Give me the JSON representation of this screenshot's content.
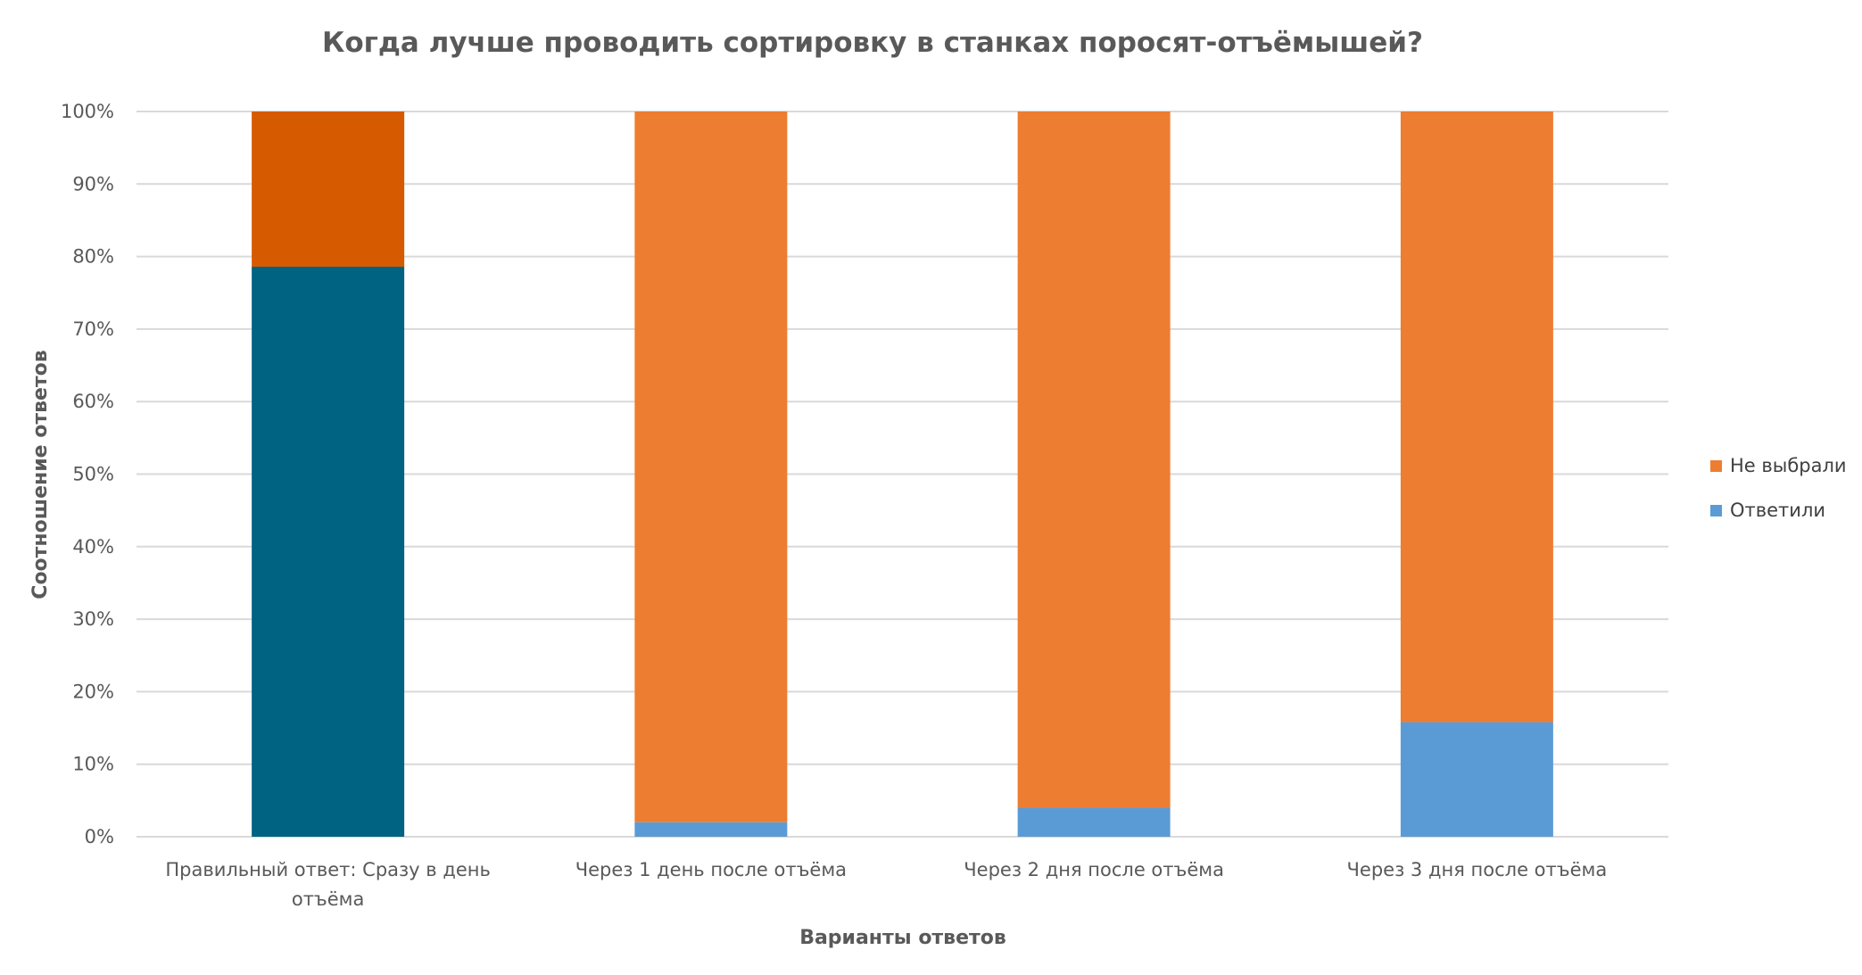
{
  "chart_data": {
    "type": "bar",
    "stacked": true,
    "normalized": true,
    "title": "Когда лучше проводить сортировку в станках поросят-отъёмышей?",
    "xlabel": "Варианты ответов",
    "ylabel": "Соотношение ответов",
    "ylim": [
      0,
      100
    ],
    "yticks": [
      "0%",
      "10%",
      "20%",
      "30%",
      "40%",
      "50%",
      "60%",
      "70%",
      "80%",
      "90%",
      "100%"
    ],
    "grid": true,
    "legend_position": "right",
    "categories": [
      [
        "Правильный ответ: Сразу в день",
        "отъёма"
      ],
      [
        "Через 1 день после отъёма"
      ],
      [
        "Через 2 дня после отъёма"
      ],
      [
        "Через 3 дня после отъёма"
      ]
    ],
    "series": [
      {
        "name": "Ответили",
        "values": [
          78.6,
          2.0,
          4.0,
          15.8
        ],
        "color": "#5B9BD5",
        "highlight_colors": [
          "#006382",
          null,
          null,
          null
        ]
      },
      {
        "name": "Не выбрали",
        "values": [
          21.4,
          98.0,
          96.0,
          84.2
        ],
        "color": "#ED7D31",
        "highlight_colors": [
          "#D65A00",
          null,
          null,
          null
        ]
      }
    ],
    "legend_order": [
      "Не выбрали",
      "Ответили"
    ]
  }
}
